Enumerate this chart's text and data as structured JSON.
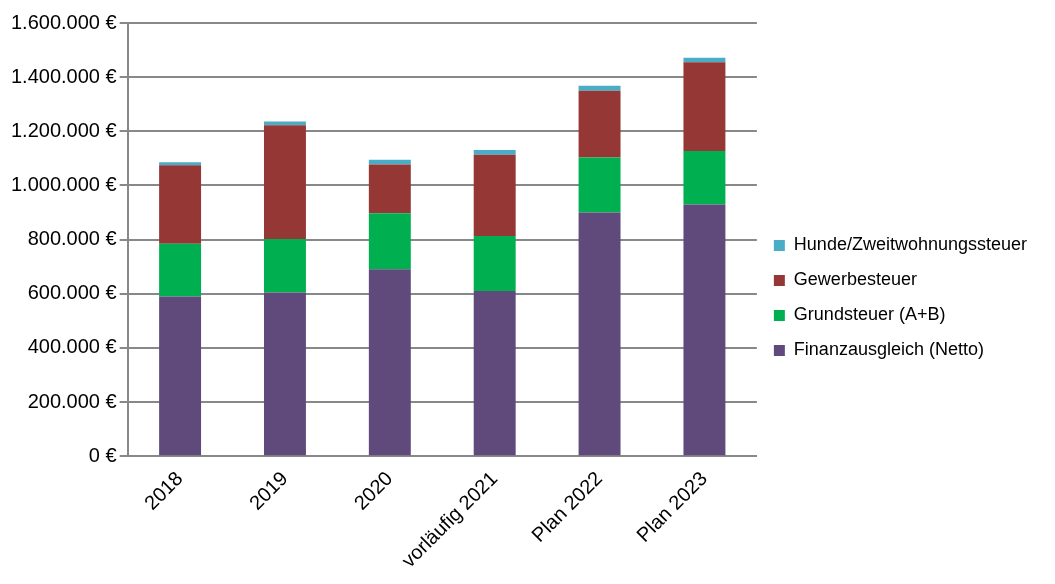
{
  "chart_data": {
    "type": "bar",
    "stacked": true,
    "categories": [
      "2018",
      "2019",
      "2020",
      "vorläufig 2021",
      "Plan 2022",
      "Plan 2023"
    ],
    "series": [
      {
        "name": "Finanzausgleich (Netto)",
        "color": "#604a7b",
        "values": [
          590000,
          605000,
          690000,
          610000,
          900000,
          930000
        ]
      },
      {
        "name": "Grundsteuer (A+B)",
        "color": "#00b050",
        "values": [
          195000,
          197000,
          207000,
          203000,
          203000,
          197000
        ]
      },
      {
        "name": "Gewerbesteuer",
        "color": "#953735",
        "values": [
          290000,
          420000,
          180000,
          300000,
          247000,
          328000
        ]
      },
      {
        "name": "Hunde/Zweitwohnungssteuer",
        "color": "#4bacc6",
        "values": [
          11000,
          14000,
          18000,
          18000,
          18000,
          17000
        ]
      }
    ],
    "ylim": [
      0,
      1600000
    ],
    "yticks": [
      {
        "value": 0,
        "label": "0 €"
      },
      {
        "value": 200000,
        "label": "200.000 €"
      },
      {
        "value": 400000,
        "label": "400.000 €"
      },
      {
        "value": 600000,
        "label": "600.000 €"
      },
      {
        "value": 800000,
        "label": "800.000 €"
      },
      {
        "value": 1000000,
        "label": "1.000.000 €"
      },
      {
        "value": 1200000,
        "label": "1.200.000 €"
      },
      {
        "value": 1400000,
        "label": "1.400.000 €"
      },
      {
        "value": 1600000,
        "label": "1.600.000 €"
      }
    ],
    "grid": "y",
    "legend": "right"
  }
}
